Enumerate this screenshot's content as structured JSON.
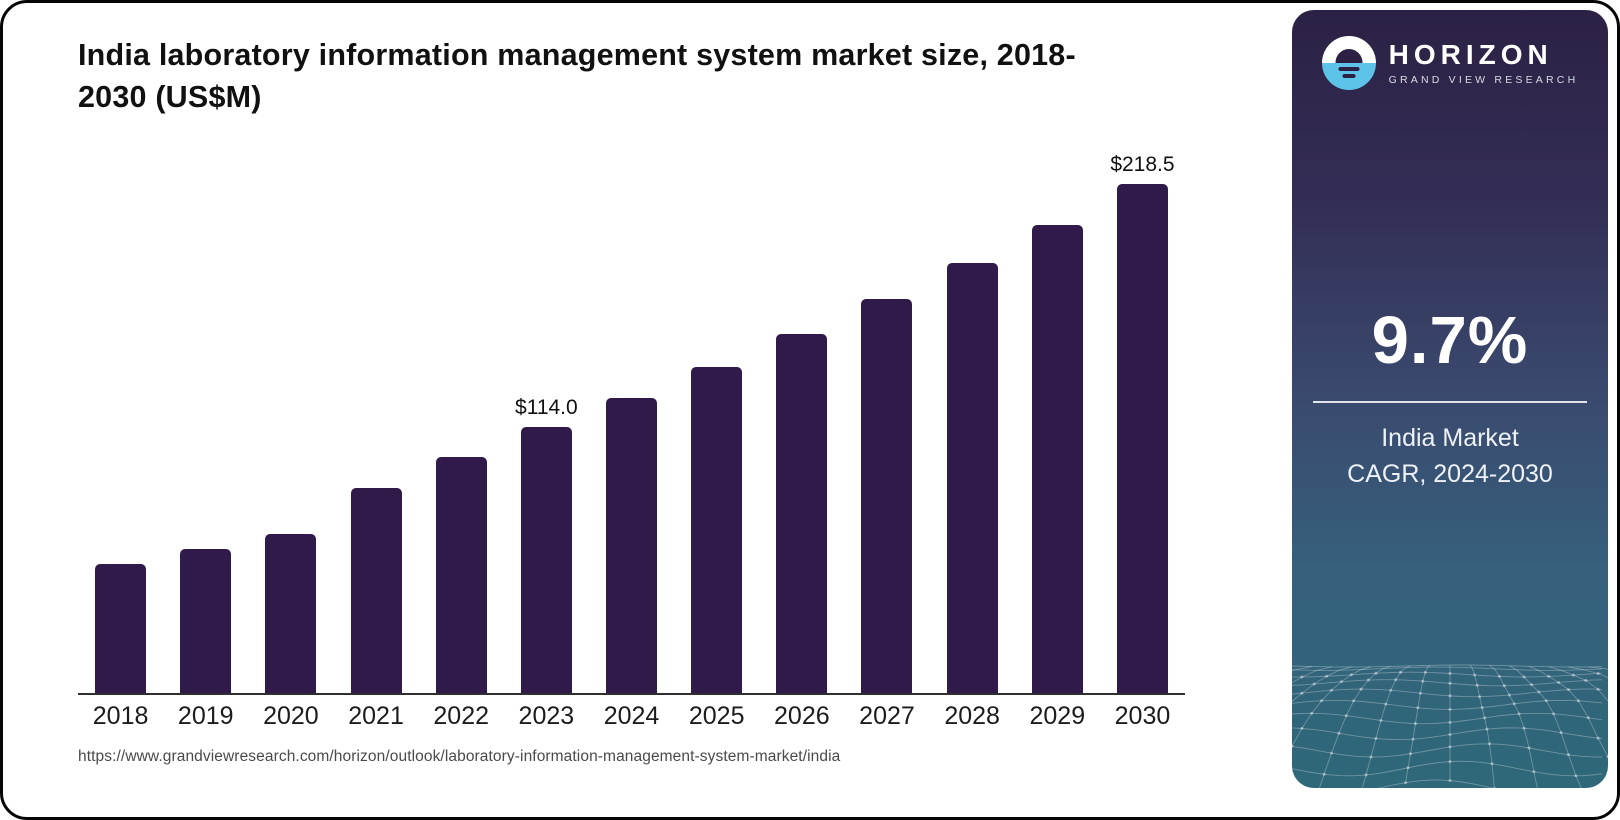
{
  "header": {
    "title": "India laboratory information management system market size, 2018-2030 (US$M)"
  },
  "chart_data": {
    "type": "bar",
    "title": "India laboratory information management system market size, 2018-2030 (US$M)",
    "unit": "US$M",
    "categories": [
      "2018",
      "2019",
      "2020",
      "2021",
      "2022",
      "2023",
      "2024",
      "2025",
      "2026",
      "2027",
      "2028",
      "2029",
      "2030"
    ],
    "values": [
      55.4,
      61.8,
      68.2,
      88.0,
      101.5,
      114.0,
      126.6,
      140.0,
      154.0,
      169.0,
      184.5,
      201.0,
      218.5
    ],
    "data_labels": {
      "2023": "$114.0",
      "2030": "$218.5"
    },
    "xlabel": "",
    "ylabel": "",
    "ylim": [
      0,
      230
    ],
    "grid": "off",
    "legend": "none",
    "bar_color": "#2f1a4a"
  },
  "sidebar": {
    "brand": {
      "name": "HORIZON",
      "tagline": "GRAND VIEW RESEARCH"
    },
    "stat": {
      "value": "9.7%",
      "caption_line1": "India Market",
      "caption_line2": "CAGR, 2024-2030"
    }
  },
  "footer": {
    "source_url": "https://www.grandviewresearch.com/horizon/outlook/laboratory-information-management-system-market/india"
  },
  "colors": {
    "bar": "#2f1a4a",
    "logo_blue": "#5ec3e8",
    "panel_top": "#2c2144",
    "panel_bottom": "#2e6879"
  }
}
